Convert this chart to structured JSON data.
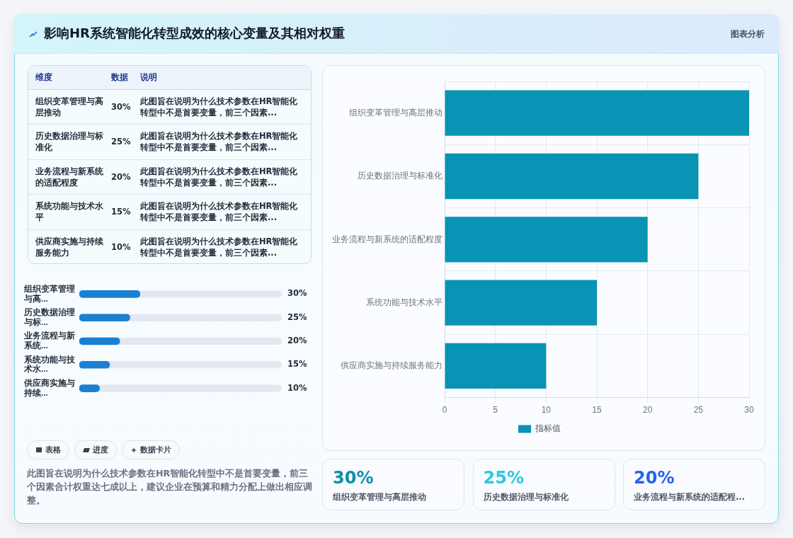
{
  "chart_data": [
    {
      "type": "other",
      "title": "影响HR系统智能化转型成效的核心变量及其相对权重",
      "annotations": [
        "图表分析"
      ]
    },
    {
      "type": "bar",
      "orientation": "horizontal",
      "categories": [
        "组织变革管理与高...",
        "历史数据治理与标...",
        "业务流程与新系统...",
        "系统功能与技术水...",
        "供应商实施与持续..."
      ],
      "values": [
        30,
        25,
        20,
        15,
        10
      ],
      "value_labels": [
        "30%",
        "25%",
        "20%",
        "15%",
        "10%"
      ],
      "color": "#1b80d2",
      "xlim": [
        0,
        100
      ],
      "tick_labels": "y",
      "annotations": [
        "维度",
        "数据",
        "说明",
        "组织变革管理与高层推动",
        "此图旨在说明为什么技术参数在HR智能化转型中不是首要变量，前三个因素...",
        "历史数据治理与标准化",
        "此图旨在说明为什么技术参数在HR智能化转型中不是首要变量，前三个因素...",
        "业务流程与新系统的适配程度",
        "此图旨在说明为什么技术参数在HR智能化转型中不是首要变量，前三个因素...",
        "系统功能与技术水平",
        "此图旨在说明为什么技术参数在HR智能化转型中不是首要变量，前三个因素...",
        "供应商实施与持续服务能力",
        "此图旨在说明为什么技术参数在HR智能化转型中不是首要变量，前三个因素..."
      ]
    },
    {
      "type": "bar",
      "orientation": "horizontal",
      "categories": [
        "组织变革管理与高层推动",
        "历史数据治理与标准化",
        "业务流程与新系统的适配程度",
        "系统功能与技术水平",
        "供应商实施与持续服务能力"
      ],
      "series": [
        {
          "name": "指标值",
          "color": "#0993b5",
          "values": [
            30,
            25,
            20,
            15,
            10
          ]
        }
      ],
      "xlim": [
        0,
        30
      ],
      "xticks": [
        0,
        5,
        10,
        15,
        20,
        25,
        30
      ],
      "grid": true,
      "legend": "bottom"
    },
    {
      "type": "other",
      "annotations": [
        "表格",
        "进度",
        "数据卡片",
        "此图旨在说明为什么技术参数在HR智能化转型中不是首要变量，前三个因素合计权重达七成以上，建议企业在预算和精力分配上做出相应调整。"
      ]
    },
    {
      "type": "other",
      "annotations": [
        "30%",
        "组织变革管理与高层推动",
        "25%",
        "历史数据治理与标准化",
        "20%",
        "业务流程与新系统的适配程..."
      ]
    }
  ]
}
